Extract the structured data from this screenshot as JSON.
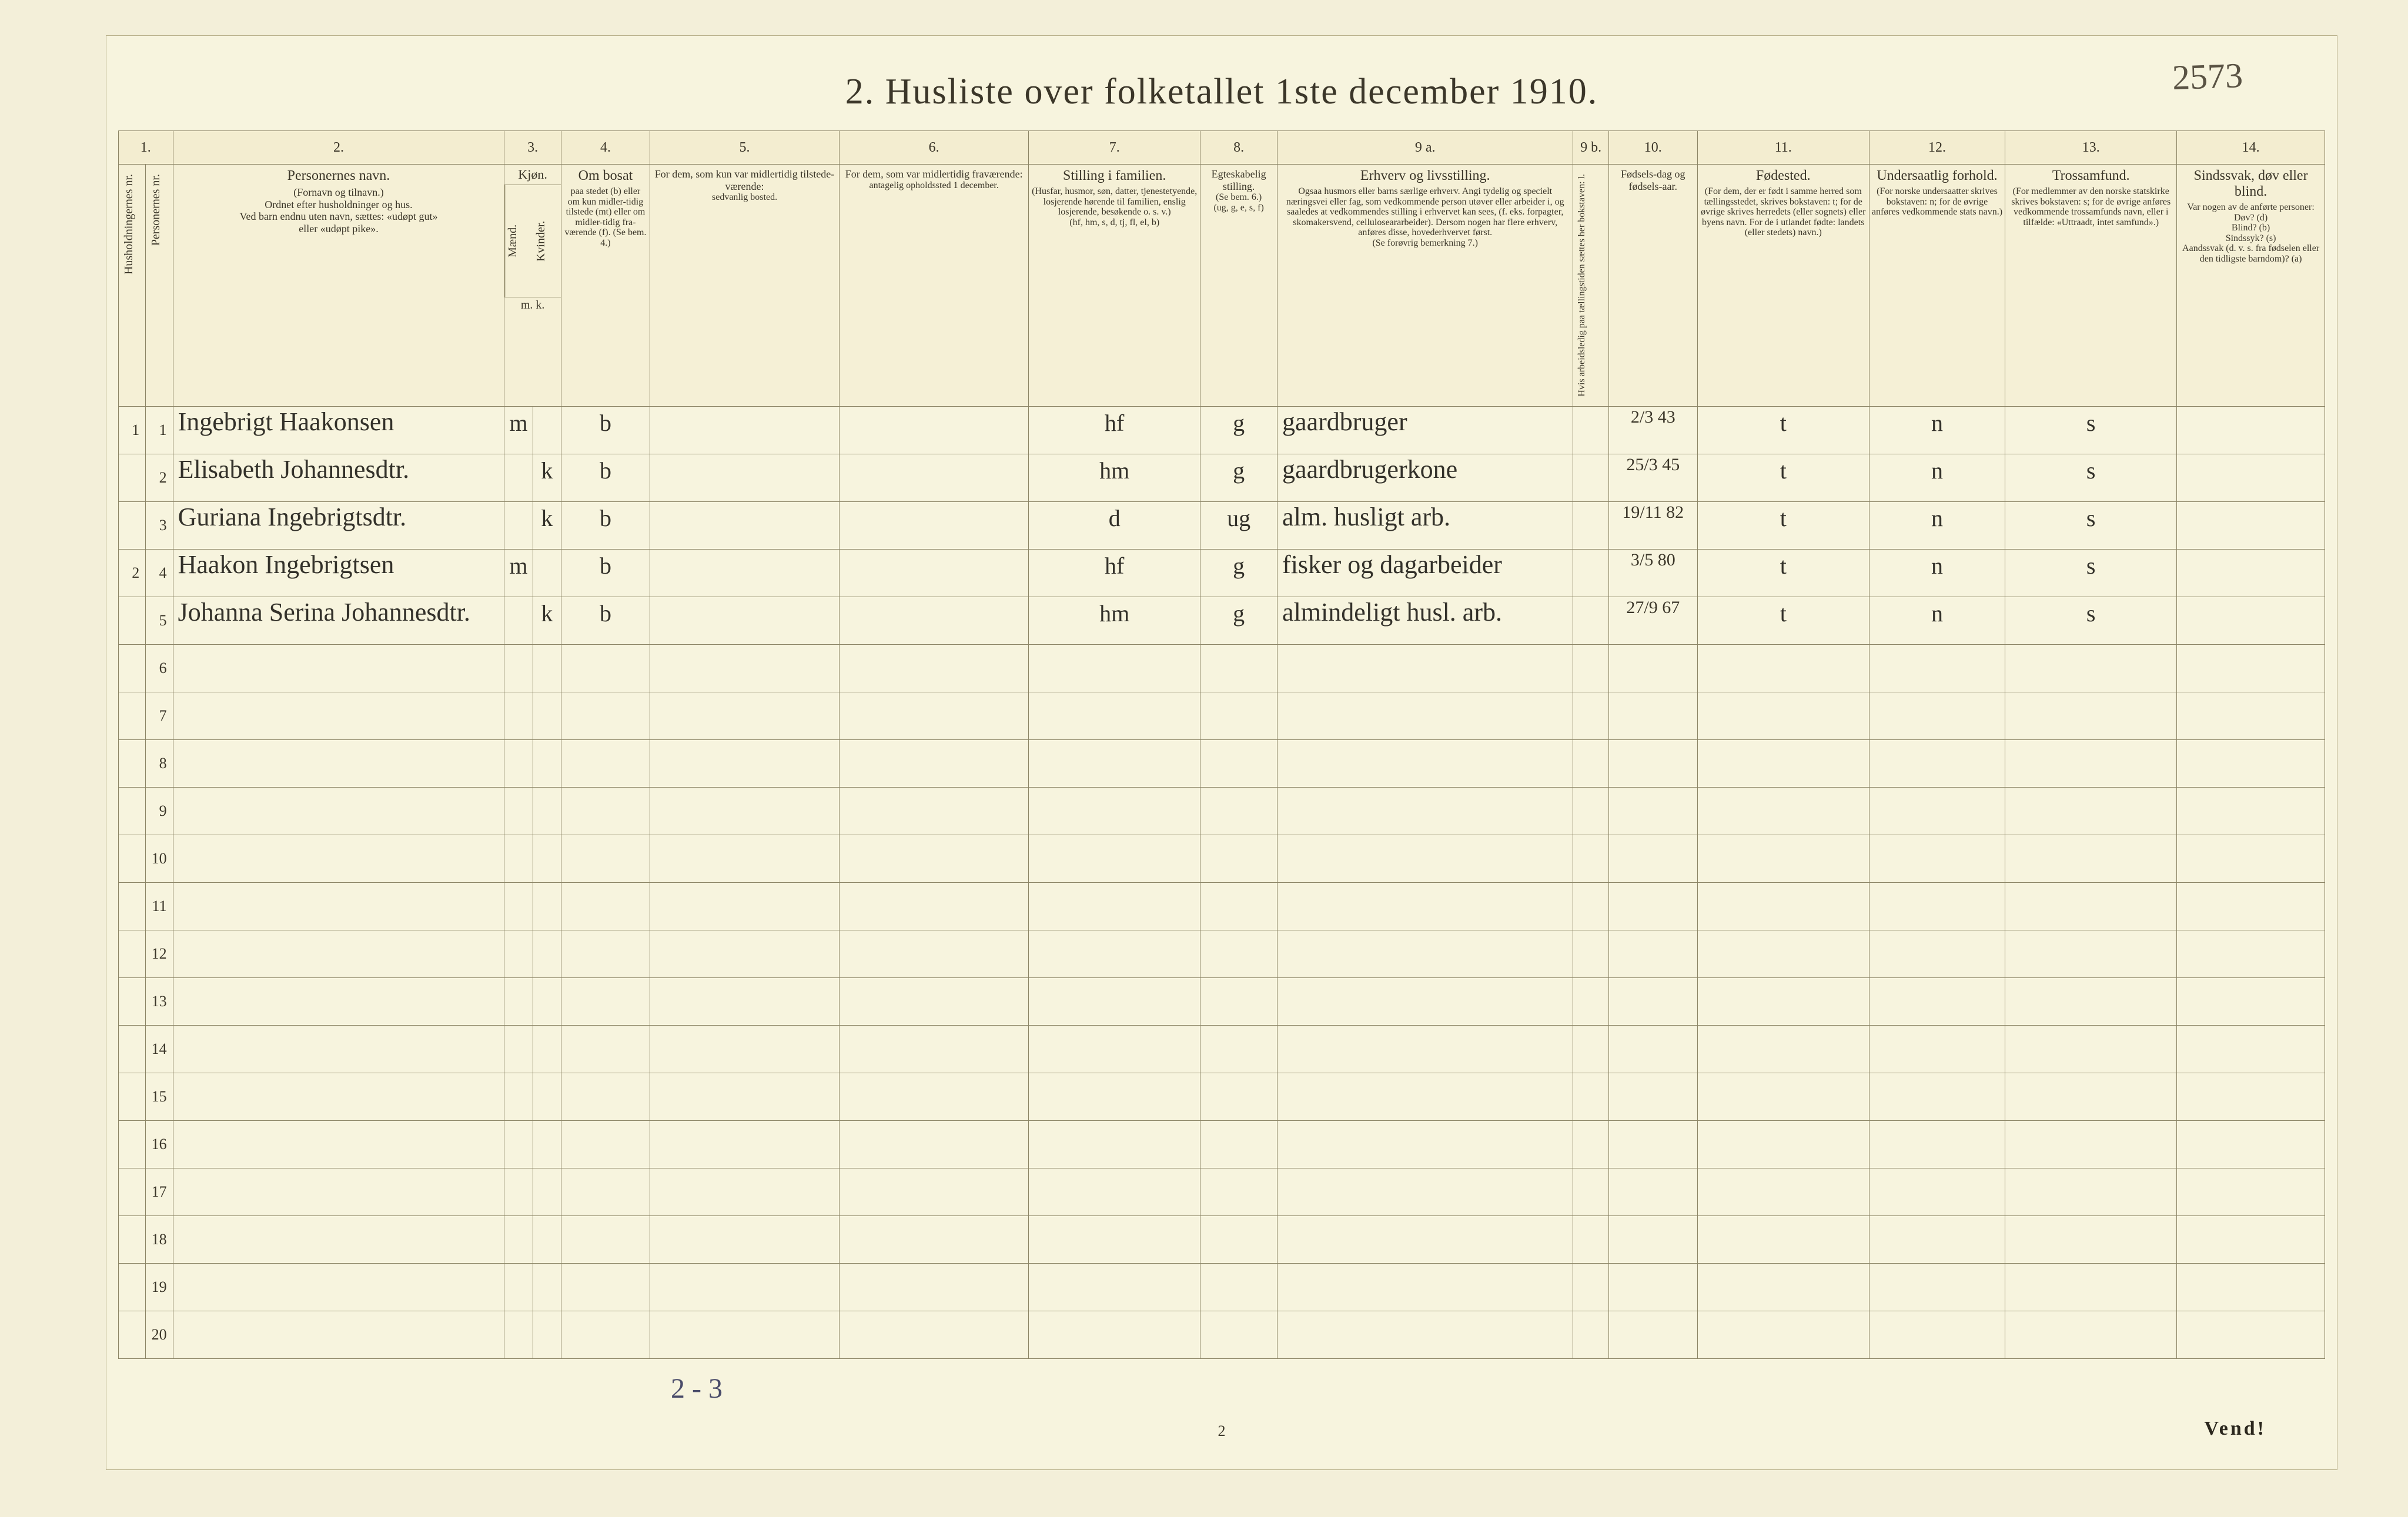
{
  "page_number_handwritten": "2573",
  "title": "2.  Husliste over folketallet 1ste december 1910.",
  "footer_vend": "Vend!",
  "footer_page": "2",
  "tally_note": "2 - 3",
  "colors": {
    "paper": "#f7f4de",
    "paper_outer": "#f3efd9",
    "frame": "#1a1a18",
    "rule": "#8c8566",
    "ink_print": "#3b3629",
    "ink_hand": "#33312a",
    "ink_pencil": "#4a4c6a"
  },
  "column_numbers": [
    "1.",
    "2.",
    "3.",
    "4.",
    "5.",
    "6.",
    "7.",
    "8.",
    "9 a.",
    "9 b.",
    "10.",
    "11.",
    "12.",
    "13.",
    "14."
  ],
  "headers": {
    "c1a": "Husholdningernes nr.",
    "c1b": "Personernes nr.",
    "c2_head": "Personernes navn.",
    "c2_small": "(Fornavn og tilnavn.)\nOrdnet efter husholdninger og hus.\nVed barn endnu uten navn, sættes: «udøpt gut»\neller «udøpt pike».",
    "c3_head": "Kjøn.",
    "c3a": "Mænd.",
    "c3b": "Kvinder.",
    "c3_foot": "m.  k.",
    "c4_head": "Om bosat",
    "c4_small": "paa stedet (b) eller om kun midler-tidig tilstede (mt) eller om midler-tidig fra-værende (f). (Se bem. 4.)",
    "c5_head": "For dem, som kun var midlertidig tilstede-værende:",
    "c5_small": "sedvanlig bosted.",
    "c6_head": "For dem, som var midlertidig fraværende:",
    "c6_small": "antagelig opholdssted 1 december.",
    "c7_head": "Stilling i familien.",
    "c7_small": "(Husfar, husmor, søn, datter, tjenestetyende, losjerende hørende til familien, enslig losjerende, besøkende o. s. v.)\n(hf, hm, s, d, tj, fl, el, b)",
    "c8_head": "Egteskabelig stilling.",
    "c8_small": "(Se bem. 6.)\n(ug, g, e, s, f)",
    "c9a_head": "Erhverv og livsstilling.",
    "c9a_small": "Ogsaa husmors eller barns særlige erhverv. Angi tydelig og specielt næringsvei eller fag, som vedkommende person utøver eller arbeider i, og saaledes at vedkommendes stilling i erhvervet kan sees, (f. eks. forpagter, skomakersvend, celluloseararbeider). Dersom nogen har flere erhverv, anføres disse, hovederhvervet først.\n(Se forøvrig bemerkning 7.)",
    "c9b": "Hvis arbeidsledig paa tællingstiden sættes her bokstaven: l.",
    "c10_head": "Fødsels-dag og fødsels-aar.",
    "c11_head": "Fødested.",
    "c11_small": "(For dem, der er født i samme herred som tællingsstedet, skrives bokstaven: t; for de øvrige skrives herredets (eller sognets) eller byens navn. For de i utlandet fødte: landets (eller stedets) navn.)",
    "c12_head": "Undersaatlig forhold.",
    "c12_small": "(For norske undersaatter skrives bokstaven: n; for de øvrige anføres vedkommende stats navn.)",
    "c13_head": "Trossamfund.",
    "c13_small": "(For medlemmer av den norske statskirke skrives bokstaven: s; for de øvrige anføres vedkommende trossamfunds navn, eller i tilfælde: «Uttraadt, intet samfund».)",
    "c14_head": "Sindssvak, døv eller blind.",
    "c14_small": "Var nogen av de anførte personer:\nDøv?       (d)\nBlind?     (b)\nSindssyk?  (s)\nAandssvak (d. v. s. fra fødselen eller den tidligste barndom)? (a)"
  },
  "rows": [
    {
      "hh": "1",
      "pn": "1",
      "name": "Ingebrigt Haakonsen",
      "sex_m": "m",
      "sex_k": "",
      "bosat": "b",
      "c7": "hf",
      "c8": "g",
      "c9a": "gaardbruger",
      "c10": "2/3 43",
      "c11": "t",
      "c12": "n",
      "c13": "s"
    },
    {
      "hh": "",
      "pn": "2",
      "name": "Elisabeth Johannesdtr.",
      "sex_m": "",
      "sex_k": "k",
      "bosat": "b",
      "c7": "hm",
      "c8": "g",
      "c9a": "gaardbrugerkone",
      "c10": "25/3 45",
      "c11": "t",
      "c12": "n",
      "c13": "s"
    },
    {
      "hh": "",
      "pn": "3",
      "name": "Guriana Ingebrigtsdtr.",
      "sex_m": "",
      "sex_k": "k",
      "bosat": "b",
      "c7": "d",
      "c8": "ug",
      "c9a": "alm. husligt arb.",
      "c10": "19/11 82",
      "c11": "t",
      "c12": "n",
      "c13": "s"
    },
    {
      "hh": "2",
      "pn": "4",
      "name": "Haakon Ingebrigtsen",
      "sex_m": "m",
      "sex_k": "",
      "bosat": "b",
      "c7": "hf",
      "c8": "g",
      "c9a": "fisker og dagarbeider",
      "c10": "3/5 80",
      "c11": "t",
      "c12": "n",
      "c13": "s"
    },
    {
      "hh": "",
      "pn": "5",
      "name": "Johanna Serina Johannesdtr.",
      "sex_m": "",
      "sex_k": "k",
      "bosat": "b",
      "c7": "hm",
      "c8": "g",
      "c9a": "almindeligt husl. arb.",
      "c10": "27/9 67",
      "c11": "t",
      "c12": "n",
      "c13": "s"
    }
  ],
  "empty_row_numbers": [
    "6",
    "7",
    "8",
    "9",
    "10",
    "11",
    "12",
    "13",
    "14",
    "15",
    "16",
    "17",
    "18",
    "19",
    "20"
  ]
}
